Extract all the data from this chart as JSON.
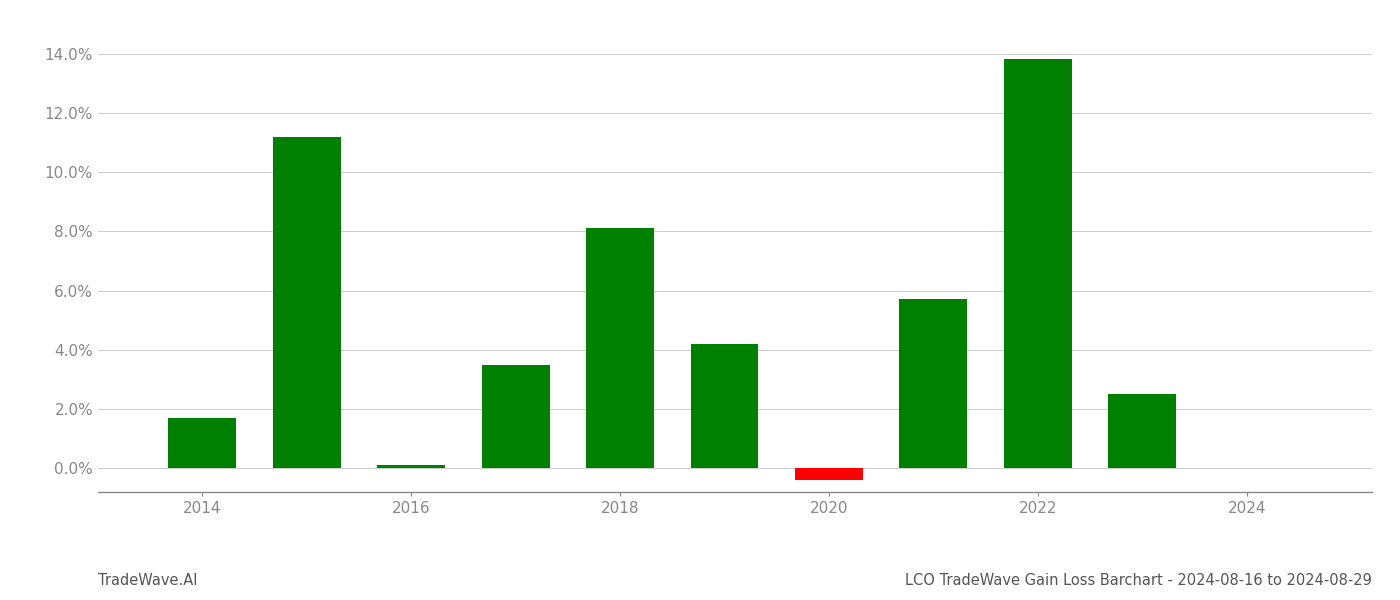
{
  "years": [
    2014,
    2015,
    2016,
    2017,
    2018,
    2019,
    2020,
    2021,
    2022,
    2023
  ],
  "values": [
    0.017,
    0.112,
    0.001,
    0.035,
    0.081,
    0.042,
    -0.004,
    0.057,
    0.138,
    0.025
  ],
  "bar_colors_positive": "#008000",
  "bar_colors_negative": "#ff0000",
  "title": "LCO TradeWave Gain Loss Barchart - 2024-08-16 to 2024-08-29",
  "watermark": "TradeWave.AI",
  "ylim_min": -0.008,
  "ylim_max": 0.152,
  "xlim_min": 2013.0,
  "xlim_max": 2025.2,
  "background_color": "#ffffff",
  "grid_color": "#cccccc",
  "axis_label_color": "#888888",
  "bar_width": 0.65,
  "title_fontsize": 10.5,
  "watermark_fontsize": 10.5,
  "tick_fontsize": 11,
  "yticks": [
    0.0,
    0.02,
    0.04,
    0.06,
    0.08,
    0.1,
    0.12,
    0.14
  ],
  "xticks": [
    2014,
    2016,
    2018,
    2020,
    2022,
    2024
  ]
}
